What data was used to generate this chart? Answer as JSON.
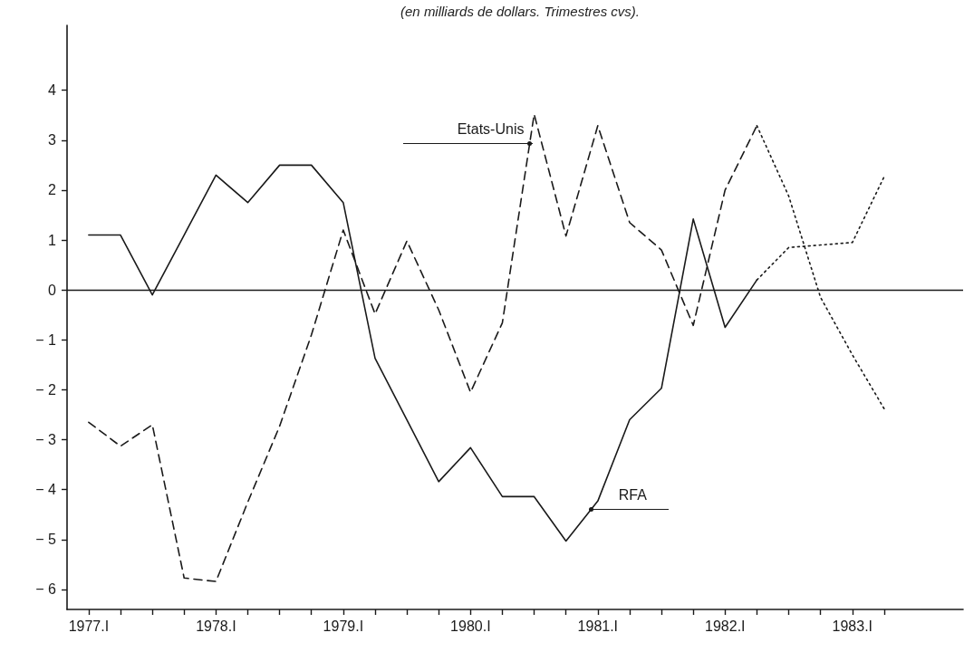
{
  "chart_data": {
    "type": "line",
    "subtitle": "(en milliards de dollars. Trimestres cvs).",
    "xlim": [
      1976.83,
      1983.87
    ],
    "xticks": [
      {
        "value": 1977,
        "label": "1977.I"
      },
      {
        "value": 1977.25,
        "label": null
      },
      {
        "value": 1977.5,
        "label": null
      },
      {
        "value": 1977.75,
        "label": null
      },
      {
        "value": 1978,
        "label": "1978.I"
      },
      {
        "value": 1978.25,
        "label": null
      },
      {
        "value": 1978.5,
        "label": null
      },
      {
        "value": 1978.75,
        "label": null
      },
      {
        "value": 1979,
        "label": "1979.I"
      },
      {
        "value": 1979.25,
        "label": null
      },
      {
        "value": 1979.5,
        "label": null
      },
      {
        "value": 1979.75,
        "label": null
      },
      {
        "value": 1980,
        "label": "1980.I"
      },
      {
        "value": 1980.25,
        "label": null
      },
      {
        "value": 1980.5,
        "label": null
      },
      {
        "value": 1980.75,
        "label": null
      },
      {
        "value": 1981,
        "label": "1981.I"
      },
      {
        "value": 1981.25,
        "label": null
      },
      {
        "value": 1981.5,
        "label": null
      },
      {
        "value": 1981.75,
        "label": null
      },
      {
        "value": 1982,
        "label": "1982.I"
      },
      {
        "value": 1982.25,
        "label": null
      },
      {
        "value": 1982.5,
        "label": null
      },
      {
        "value": 1982.75,
        "label": null
      },
      {
        "value": 1983,
        "label": "1983.I"
      },
      {
        "value": 1983.25,
        "label": null
      }
    ],
    "ylim": [
      -6.4,
      5.3
    ],
    "yticks": [
      {
        "value": -6,
        "label": "− 6"
      },
      {
        "value": -5,
        "label": "− 5"
      },
      {
        "value": -4,
        "label": "− 4"
      },
      {
        "value": -3,
        "label": "− 3"
      },
      {
        "value": -2,
        "label": "− 2"
      },
      {
        "value": -1,
        "label": "− 1"
      },
      0,
      1,
      2,
      3,
      4
    ],
    "grid": false,
    "legend": false,
    "marker": "none",
    "series": [
      {
        "name": "RFA",
        "color": "#1a1a1a",
        "line_style": "solid",
        "x": [
          1977,
          1977.25,
          1977.5,
          1977.75,
          1978,
          1978.25,
          1978.5,
          1978.75,
          1979,
          1979.25,
          1979.5,
          1979.75,
          1980,
          1980.25,
          1980.5,
          1980.75,
          1981,
          1981.25,
          1981.5,
          1981.75,
          1982,
          1982.25
        ],
        "values": [
          1.1,
          1.1,
          -0.1,
          1.1,
          2.3,
          1.75,
          2.5,
          2.5,
          1.75,
          -1.37,
          -2.6,
          -3.84,
          -3.16,
          -4.14,
          -4.14,
          -5.03,
          -4.23,
          -2.6,
          -1.97,
          1.42,
          -0.75,
          0.2
        ]
      },
      {
        "color": "#1a1a1a",
        "line_style": "dotted",
        "x": [
          1982.25,
          1982.5,
          1982.75,
          1983,
          1983.25
        ],
        "values": [
          0.2,
          0.85,
          0.9,
          0.95,
          2.27
        ]
      },
      {
        "name": "Etats-Unis",
        "color": "#1a1a1a",
        "line_style": "dashed",
        "x": [
          1977,
          1977.25,
          1977.5,
          1977.75,
          1978,
          1978.25,
          1978.5,
          1978.75,
          1979,
          1979.25,
          1979.5,
          1979.75,
          1980,
          1980.25,
          1980.5,
          1980.75,
          1981,
          1981.25,
          1981.5,
          1981.75,
          1982,
          1982.25
        ],
        "values": [
          -2.65,
          -3.13,
          -2.7,
          -5.77,
          -5.84,
          -4.25,
          -2.73,
          -0.9,
          1.2,
          -0.48,
          0.98,
          -0.4,
          -2.05,
          -0.66,
          3.52,
          1.08,
          3.29,
          1.35,
          0.8,
          -0.71,
          2.0,
          3.29
        ]
      },
      {
        "color": "#1a1a1a",
        "line_style": "dotted",
        "x": [
          1982.25,
          1982.5,
          1982.75,
          1983,
          1983.25
        ],
        "values": [
          3.29,
          1.88,
          -0.15,
          -1.3,
          -2.38
        ]
      }
    ],
    "ref_lines": [
      {
        "axis": "y",
        "value": 0,
        "color": "#1a1a1a",
        "line_style": "solid"
      }
    ]
  }
}
